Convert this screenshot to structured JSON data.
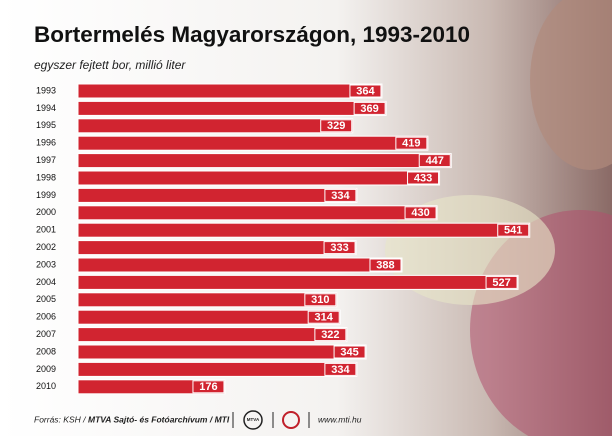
{
  "chart_data": {
    "type": "bar",
    "orientation": "horizontal",
    "title": "Bortermelés Magyarországon, 1993-2010",
    "subtitle": "egyszer fejtett bor, millió liter",
    "categories": [
      "1993",
      "1994",
      "1995",
      "1996",
      "1997",
      "1998",
      "1999",
      "2000",
      "2001",
      "2002",
      "2003",
      "2004",
      "2005",
      "2006",
      "2007",
      "2008",
      "2009",
      "2010"
    ],
    "values": [
      364,
      369,
      329,
      419,
      447,
      433,
      334,
      430,
      541,
      333,
      388,
      527,
      310,
      314,
      322,
      345,
      334,
      176
    ],
    "color": "#d12430",
    "source": "Forrás: KSH /",
    "source_bold": "MTVA Sajtó- és Fotóarchívum / MTI",
    "logo": "MTVA",
    "website": "www.mti.hu"
  }
}
